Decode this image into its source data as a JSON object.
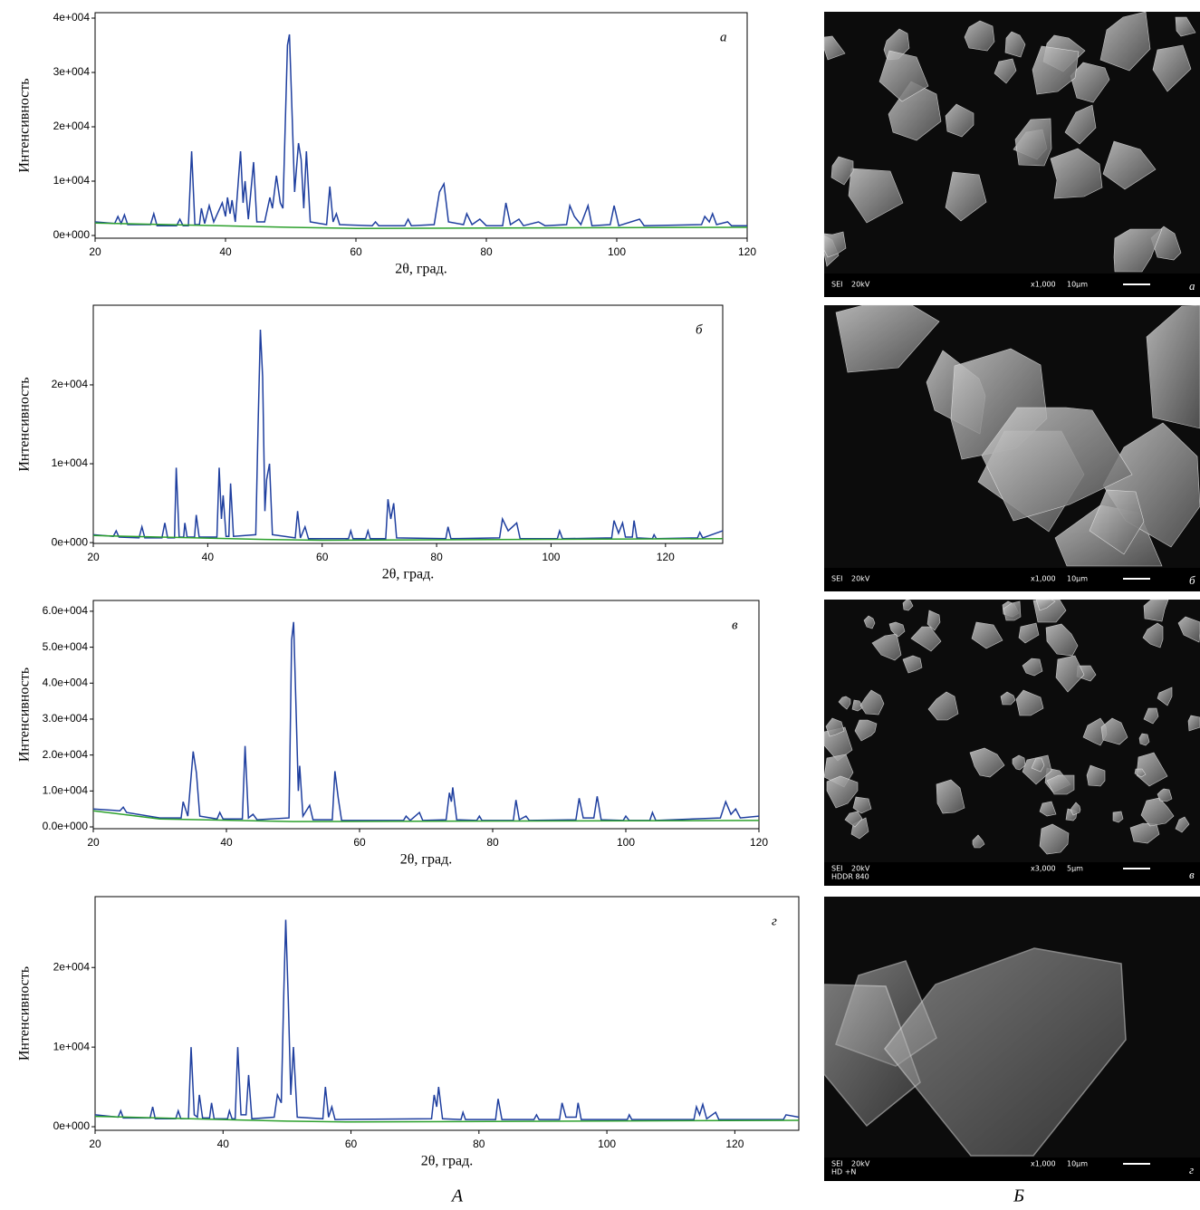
{
  "chart_data": [
    {
      "type": "line",
      "label": "а",
      "xlabel": "2θ, град.",
      "ylabel": "Интенсивность",
      "xlim": [
        20,
        120
      ],
      "xticks": [
        20,
        40,
        60,
        80,
        100,
        120
      ],
      "ylim": [
        -500,
        41000
      ],
      "yticks": [
        {
          "value": 0,
          "label": "0e+000"
        },
        {
          "value": 10000,
          "label": "1e+004"
        },
        {
          "value": 20000,
          "label": "2e+004"
        },
        {
          "value": 30000,
          "label": "3e+004"
        },
        {
          "value": 40000,
          "label": "4e+004"
        }
      ],
      "series": [
        {
          "color": "#1f3f9f",
          "x": [
            20,
            23,
            23.5,
            24,
            24.5,
            25,
            28.5,
            29,
            29.5,
            32.5,
            33,
            33.5,
            34.3,
            34.8,
            35.3,
            36,
            36.3,
            36.8,
            37.5,
            38.2,
            39.5,
            40,
            40.3,
            40.7,
            41,
            41.5,
            42.3,
            42.7,
            43,
            43.5,
            44.3,
            44.8,
            46,
            46.8,
            47.2,
            47.8,
            48.4,
            48.8,
            49.5,
            49.8,
            50.2,
            50.6,
            51.2,
            51.6,
            52,
            52.4,
            53,
            55.5,
            56,
            56.5,
            57,
            57.5,
            62.5,
            63,
            63.5,
            67.5,
            68,
            68.5,
            72,
            72.8,
            73.5,
            74.2,
            76.5,
            77,
            77.8,
            79,
            80,
            82.5,
            83,
            83.7,
            85,
            85.7,
            88,
            89,
            92.3,
            92.8,
            93.5,
            94.5,
            95.6,
            96.2,
            99,
            99.6,
            100.3,
            103.5,
            104.2,
            113,
            113.5,
            114.2,
            114.7,
            115.3,
            117,
            117.6,
            120
          ],
          "values": [
            2500,
            2200,
            3500,
            2200,
            3800,
            2000,
            2000,
            4000,
            1800,
            1800,
            3000,
            1800,
            1800,
            15500,
            2000,
            2000,
            5000,
            2200,
            5500,
            2500,
            6000,
            3500,
            7000,
            4000,
            6500,
            2500,
            15500,
            6000,
            10000,
            3000,
            13500,
            2500,
            2500,
            7000,
            5000,
            11000,
            6000,
            5000,
            35000,
            37000,
            23000,
            8000,
            17000,
            14000,
            5000,
            15500,
            2500,
            2000,
            9000,
            2500,
            4000,
            2000,
            1800,
            2500,
            1800,
            1800,
            3000,
            1800,
            2000,
            8000,
            9500,
            2500,
            2000,
            4000,
            2000,
            3000,
            1800,
            1800,
            6000,
            2000,
            3000,
            1800,
            2500,
            1800,
            2000,
            5500,
            3500,
            2000,
            5500,
            1800,
            2000,
            5500,
            1800,
            3000,
            1800,
            2000,
            3500,
            2500,
            4000,
            2000,
            2500,
            1800,
            1800
          ]
        },
        {
          "color": "#2ca02c",
          "x": [
            20,
            50,
            60,
            120
          ],
          "values": [
            2300,
            1500,
            1300,
            1500
          ]
        }
      ]
    },
    {
      "type": "line",
      "label": "б",
      "xlabel": "2θ, град.",
      "ylabel": "Интенсивность",
      "xlim": [
        20,
        130
      ],
      "xticks": [
        20,
        40,
        60,
        80,
        100,
        120
      ],
      "ylim": [
        -100,
        30100
      ],
      "yticks": [
        {
          "value": 0,
          "label": "0e+000"
        },
        {
          "value": 10000,
          "label": "1e+004"
        },
        {
          "value": 20000,
          "label": "2e+004"
        }
      ],
      "series": [
        {
          "color": "#1f3f9f",
          "x": [
            20,
            23.5,
            24,
            24.5,
            28,
            28.5,
            29,
            32,
            32.5,
            33,
            34.2,
            34.5,
            35,
            35.8,
            36,
            36.4,
            37.7,
            38,
            38.5,
            41.6,
            42,
            42.4,
            42.7,
            43.2,
            43.7,
            44,
            44.5,
            48.4,
            48.8,
            49.2,
            49.6,
            50,
            50.3,
            50.8,
            51.3,
            55.3,
            55.7,
            56.2,
            57,
            57.6,
            64.6,
            65,
            65.4,
            67.6,
            68,
            68.4,
            71.1,
            71.5,
            72,
            72.5,
            73,
            81.6,
            82,
            82.5,
            91,
            91.5,
            92.5,
            94,
            94.6,
            101.1,
            101.5,
            102,
            110.6,
            111,
            111.8,
            112.5,
            113,
            114.2,
            114.5,
            115,
            117.7,
            118,
            118.4,
            125.6,
            126,
            126.5,
            130
          ],
          "values": [
            1000,
            800,
            1500,
            700,
            600,
            2000,
            600,
            600,
            2500,
            600,
            600,
            9500,
            700,
            700,
            2500,
            700,
            700,
            3500,
            700,
            700,
            9500,
            3000,
            6000,
            800,
            800,
            7500,
            800,
            1000,
            15000,
            27000,
            21000,
            4000,
            8000,
            10000,
            1000,
            600,
            4000,
            600,
            2000,
            500,
            500,
            1500,
            500,
            500,
            1500,
            500,
            500,
            5500,
            3000,
            5000,
            600,
            500,
            2000,
            500,
            600,
            3000,
            1500,
            2500,
            500,
            500,
            1500,
            500,
            600,
            2800,
            1200,
            2500,
            700,
            700,
            2800,
            600,
            500,
            1000,
            500,
            600,
            1300,
            600,
            1500
          ]
        },
        {
          "color": "#2ca02c",
          "x": [
            20,
            50,
            60,
            130
          ],
          "values": [
            900,
            400,
            300,
            500
          ]
        }
      ]
    },
    {
      "type": "line",
      "label": "в",
      "xlabel": "2θ, град.",
      "ylabel": "Интенсивность",
      "xlim": [
        20,
        120
      ],
      "xticks": [
        20,
        40,
        60,
        80,
        100,
        120
      ],
      "ylim": [
        -500,
        63000
      ],
      "yticks": [
        {
          "value": 0,
          "label": "0.0e+000"
        },
        {
          "value": 10000,
          "label": "1.0e+004"
        },
        {
          "value": 20000,
          "label": "2.0e+004"
        },
        {
          "value": 30000,
          "label": "3.0e+004"
        },
        {
          "value": 40000,
          "label": "4.0e+004"
        },
        {
          "value": 50000,
          "label": "5.0e+004"
        },
        {
          "value": 60000,
          "label": "6.0e+004"
        }
      ],
      "series": [
        {
          "color": "#1f3f9f",
          "x": [
            20,
            24,
            24.5,
            25,
            30,
            33.2,
            33.5,
            34.2,
            35,
            35.5,
            36,
            38.6,
            39,
            39.5,
            42.4,
            42.8,
            43.3,
            44,
            44.6,
            49.4,
            49.8,
            50.1,
            50.5,
            50.8,
            51,
            51.5,
            52.5,
            53,
            55.9,
            56.3,
            56.8,
            57.3,
            66.6,
            67,
            67.6,
            69,
            69.5,
            73,
            73.5,
            73.8,
            74,
            74.6,
            77.6,
            78,
            78.4,
            83.1,
            83.5,
            84,
            85,
            85.5,
            92.5,
            93,
            93.6,
            95.2,
            95.7,
            96.3,
            99.6,
            100,
            100.5,
            103.6,
            104,
            104.5,
            114.2,
            115,
            115.8,
            116.5,
            117.2,
            120
          ],
          "values": [
            5000,
            4500,
            5500,
            4000,
            2500,
            2500,
            7000,
            3000,
            21000,
            15000,
            3000,
            2200,
            4000,
            2200,
            2200,
            22500,
            2500,
            3500,
            2000,
            2500,
            52000,
            57000,
            30000,
            10000,
            17000,
            3000,
            6000,
            2000,
            2000,
            15500,
            8000,
            1800,
            1800,
            3000,
            1800,
            4000,
            1800,
            2000,
            9500,
            7000,
            11000,
            2000,
            1800,
            3000,
            1800,
            1800,
            7500,
            2000,
            3000,
            1800,
            2000,
            8000,
            2500,
            2500,
            8500,
            2000,
            1800,
            3000,
            1800,
            1800,
            4000,
            1800,
            2500,
            7000,
            3500,
            5000,
            2500,
            3000
          ]
        },
        {
          "color": "#2ca02c",
          "x": [
            20,
            30,
            50,
            120
          ],
          "values": [
            4500,
            2200,
            1500,
            1800
          ]
        }
      ]
    },
    {
      "type": "line",
      "label": "г",
      "xlabel": "2θ, град.",
      "ylabel": "Интенсивность",
      "xlim": [
        20,
        130
      ],
      "xticks": [
        20,
        40,
        60,
        80,
        100,
        120
      ],
      "ylim": [
        -450,
        28900
      ],
      "yticks": [
        {
          "value": 0,
          "label": "0e+000"
        },
        {
          "value": 10000,
          "label": "1e+004"
        },
        {
          "value": 20000,
          "label": "2e+004"
        }
      ],
      "series": [
        {
          "color": "#1f3f9f",
          "x": [
            20,
            23.6,
            24,
            24.4,
            28.6,
            29,
            29.4,
            32.6,
            33,
            33.4,
            34.6,
            35,
            35.5,
            36,
            36.3,
            36.8,
            37.9,
            38.2,
            38.6,
            40.7,
            41,
            41.4,
            41.9,
            42.3,
            42.8,
            43.6,
            44,
            44.5,
            48,
            48.5,
            49.1,
            49.5,
            49.8,
            50.2,
            50.6,
            51,
            51.6,
            55.6,
            56,
            56.5,
            57,
            57.5,
            72.6,
            73,
            73.4,
            73.7,
            74.3,
            77.2,
            77.5,
            77.9,
            82.6,
            83,
            83.6,
            88.6,
            89,
            89.4,
            92.6,
            93,
            93.6,
            95.2,
            95.5,
            96,
            103.2,
            103.5,
            103.9,
            113.6,
            114,
            114.5,
            115,
            115.6,
            117,
            117.5,
            127.6,
            128,
            130
          ],
          "values": [
            1500,
            1200,
            2000,
            1100,
            1100,
            2500,
            1000,
            1000,
            2000,
            1000,
            1000,
            10000,
            1500,
            1200,
            4000,
            1100,
            1100,
            3000,
            1000,
            1000,
            2000,
            1000,
            1000,
            10000,
            1500,
            1500,
            6500,
            1000,
            1200,
            4000,
            3000,
            17000,
            26000,
            16000,
            4000,
            10000,
            1200,
            1000,
            5000,
            1200,
            2500,
            900,
            1000,
            4000,
            2500,
            5000,
            1000,
            900,
            1800,
            900,
            900,
            3500,
            900,
            900,
            1500,
            900,
            900,
            3000,
            1200,
            1200,
            3000,
            900,
            900,
            1500,
            900,
            900,
            2500,
            1500,
            2800,
            1000,
            1800,
            900,
            900,
            1500,
            1200
          ]
        },
        {
          "color": "#2ca02c",
          "x": [
            20,
            50,
            60,
            130
          ],
          "values": [
            1300,
            700,
            600,
            800
          ]
        }
      ]
    }
  ],
  "images": [
    {
      "texts": [
        "SEI",
        "20kV",
        "x1,000",
        "10μm"
      ],
      "letter": "а"
    },
    {
      "texts": [
        "SEI",
        "20kV",
        "x1,000",
        "10μm"
      ],
      "letter": "б"
    },
    {
      "texts": [
        "SEI",
        "20kV",
        "x3,000",
        "5μm"
      ],
      "line2": "HDDR 840",
      "letter": "в"
    },
    {
      "texts": [
        "SEI",
        "20kV",
        "x1,000",
        "10μm"
      ],
      "line2": "HD  +N",
      "letter": "г"
    }
  ],
  "captions": [
    "А",
    "Б"
  ]
}
